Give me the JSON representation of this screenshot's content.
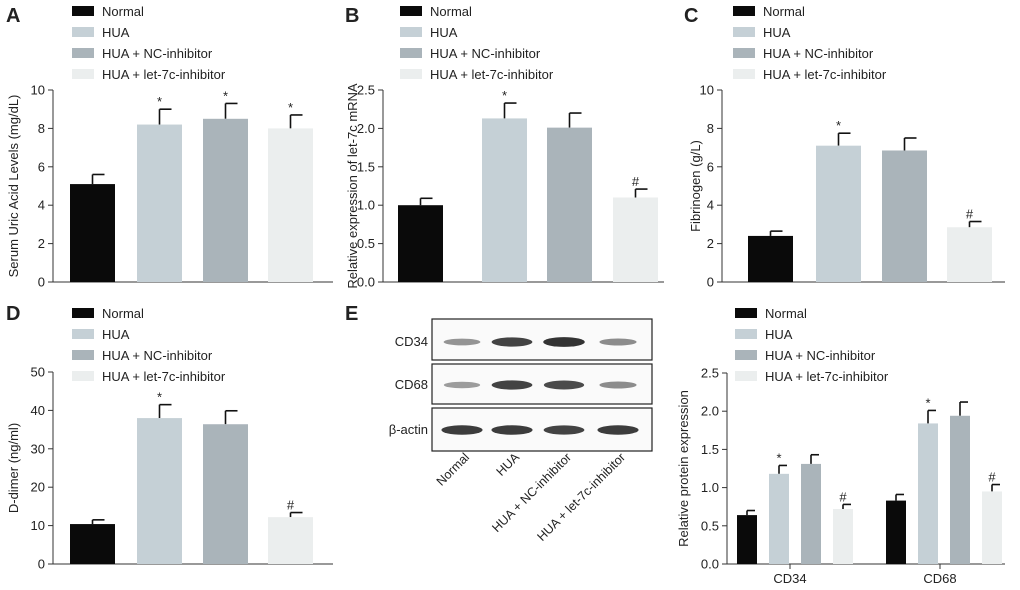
{
  "colors": {
    "Normal": "#0a0a0a",
    "HUA": "#c5d0d6",
    "HUA + NC-inhibitor": "#aab4ba",
    "HUA + let-7c-inhibitor": "#ebeeee"
  },
  "legend": [
    "Normal",
    "HUA",
    "HUA + NC-inhibitor",
    "HUA + let-7c-inhibitor"
  ],
  "chart_data": [
    {
      "panel": "A",
      "type": "bar",
      "categories": [
        "Normal",
        "HUA",
        "HUA + NC-inhibitor",
        "HUA + let-7c-inhibitor"
      ],
      "values": [
        5.1,
        8.2,
        8.5,
        8.0
      ],
      "errors": [
        0.5,
        0.8,
        0.8,
        0.7
      ],
      "annotations": [
        "",
        "*",
        "*",
        "*"
      ],
      "ylabel": "Serum Uric Acid Levels (mg/dL)",
      "ylim": [
        0,
        10
      ],
      "yticks": [
        0,
        2,
        4,
        6,
        8,
        10
      ]
    },
    {
      "panel": "B",
      "type": "bar",
      "categories": [
        "Normal",
        "HUA",
        "HUA + NC-inhibitor",
        "HUA + let-7c-inhibitor"
      ],
      "values": [
        1.0,
        2.13,
        2.01,
        1.1
      ],
      "errors": [
        0.09,
        0.2,
        0.19,
        0.11
      ],
      "annotations": [
        "",
        "*",
        "",
        "#"
      ],
      "ylabel": "Relative expression of let-7c mRNA",
      "ylim": [
        0,
        2.5
      ],
      "yticks": [
        "0.0",
        "0.5",
        "1.0",
        "1.5",
        "2.0",
        "2.5"
      ]
    },
    {
      "panel": "C",
      "type": "bar",
      "categories": [
        "Normal",
        "HUA",
        "HUA + NC-inhibitor",
        "HUA + let-7c-inhibitor"
      ],
      "values": [
        2.4,
        7.1,
        6.85,
        2.85
      ],
      "errors": [
        0.25,
        0.65,
        0.65,
        0.3
      ],
      "annotations": [
        "",
        "*",
        "",
        "#"
      ],
      "ylabel": "Fibrinogen (g/L)",
      "ylim": [
        0,
        10
      ],
      "yticks": [
        0,
        2,
        4,
        6,
        8,
        10
      ]
    },
    {
      "panel": "D",
      "type": "bar",
      "categories": [
        "Normal",
        "HUA",
        "HUA + NC-inhibitor",
        "HUA + let-7c-inhibitor"
      ],
      "values": [
        10.4,
        38.0,
        36.4,
        12.2
      ],
      "errors": [
        1.1,
        3.5,
        3.5,
        1.2
      ],
      "annotations": [
        "",
        "*",
        "",
        "#"
      ],
      "ylabel": "D-dimer (ng/ml)",
      "ylim": [
        0,
        50
      ],
      "yticks": [
        0,
        10,
        20,
        30,
        40,
        50
      ]
    },
    {
      "panel": "E",
      "type": "bar",
      "groups": [
        "CD34",
        "CD68"
      ],
      "series": [
        {
          "name": "Normal",
          "values": [
            0.64,
            0.83
          ],
          "errors": [
            0.06,
            0.08
          ],
          "annotations": [
            "",
            ""
          ]
        },
        {
          "name": "HUA",
          "values": [
            1.18,
            1.84
          ],
          "errors": [
            0.11,
            0.17
          ],
          "annotations": [
            "*",
            "*"
          ]
        },
        {
          "name": "HUA + NC-inhibitor",
          "values": [
            1.31,
            1.94
          ],
          "errors": [
            0.12,
            0.18
          ],
          "annotations": [
            "",
            ""
          ]
        },
        {
          "name": "HUA + let-7c-inhibitor",
          "values": [
            0.72,
            0.95
          ],
          "errors": [
            0.06,
            0.09
          ],
          "annotations": [
            "#",
            "#"
          ]
        }
      ],
      "ylabel": "Relative protein expression",
      "ylim": [
        0,
        2.5
      ],
      "yticks": [
        "0.0",
        "0.5",
        "1.0",
        "1.5",
        "2.0",
        "2.5"
      ]
    }
  ],
  "blot": {
    "rows": [
      "CD34",
      "CD68",
      "β-actin"
    ],
    "lanes": [
      "Normal",
      "HUA",
      "HUA + NC-inhibitor",
      "HUA + let-7c-inhibitor"
    ],
    "intensity": [
      [
        0.35,
        0.85,
        0.95,
        0.4
      ],
      [
        0.3,
        0.85,
        0.8,
        0.4
      ],
      [
        0.9,
        0.9,
        0.85,
        0.9
      ]
    ]
  }
}
